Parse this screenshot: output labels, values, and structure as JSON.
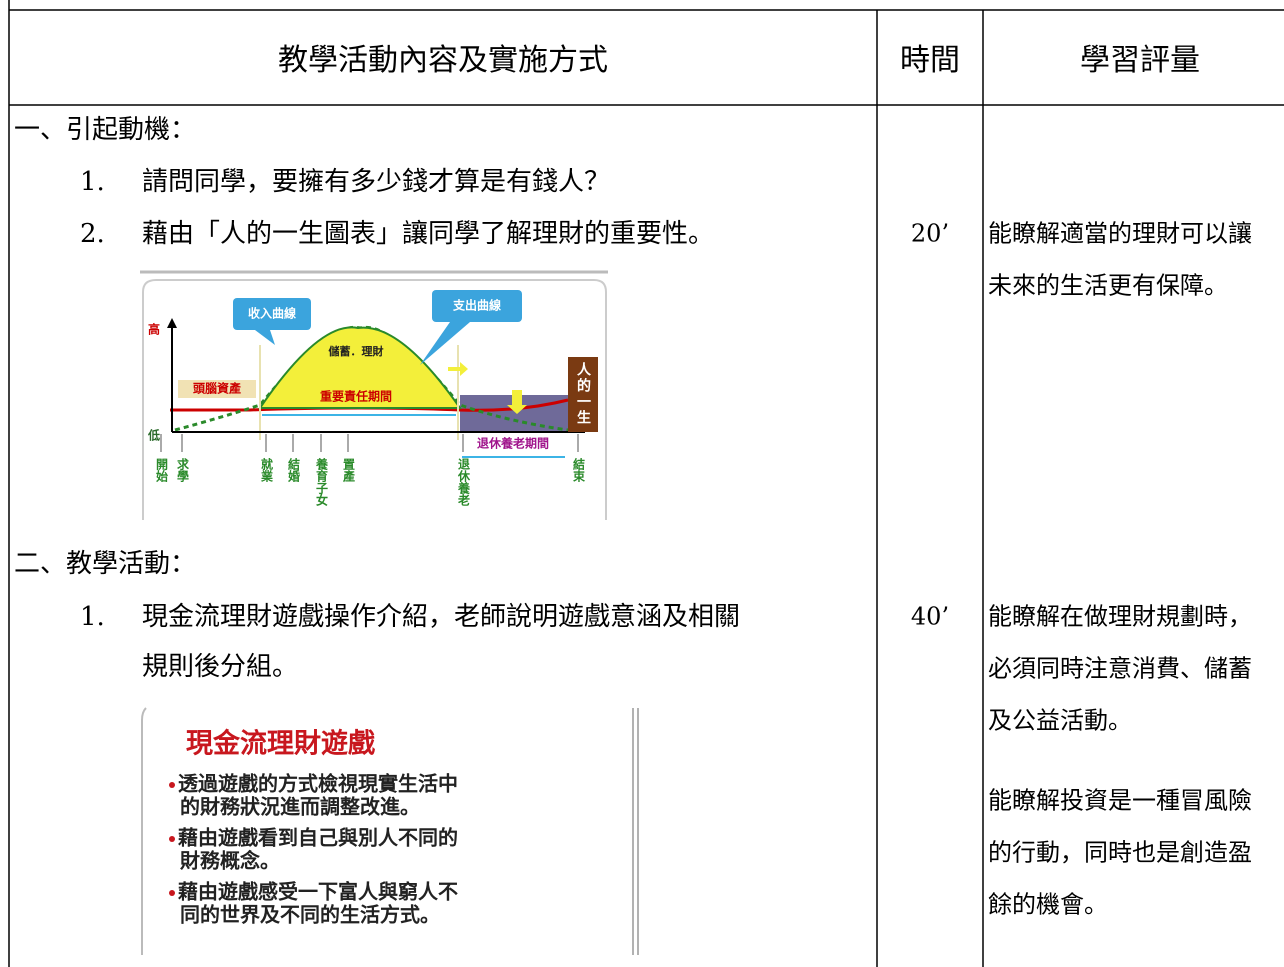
{
  "header": [
    "教學活動內容及實施方式",
    "時間",
    "學習評量"
  ],
  "section1": {
    "heading": "一、引起動機：",
    "items": [
      {
        "number": "1.",
        "text": "請問同學，要擁有多少錢才算是有錢人？"
      },
      {
        "number": "2.",
        "text": "藉由「人的一生圖表」讓同學了解理財的重要性。"
      }
    ],
    "time": "20’",
    "assessment": [
      "能瞭解適當的理財可以讓",
      "未來的生活更有保障。"
    ]
  },
  "figure1": {
    "high": "高",
    "low": "低",
    "income": "收入曲線",
    "expense": "支出曲線",
    "saving": "儲蓄．理財",
    "brain": "頭腦資產",
    "responsibility": "重要責任期間",
    "retirement_period": "退休養老期間",
    "life": "人的一生",
    "stages": [
      "開始",
      "求學",
      "就業",
      "結婚",
      "養育子女",
      "置產",
      "退休養老",
      "結束"
    ]
  },
  "section2": {
    "heading": "二、教學活動：",
    "item": {
      "number": "1.",
      "lines": [
        "現金流理財遊戲操作介紹，老師說明遊戲意涵及相關",
        "規則後分組。"
      ]
    },
    "time": "40’",
    "assessment": [
      [
        "能瞭解在做理財規劃時，",
        "必須同時注意消費、儲蓄",
        "及公益活動。"
      ],
      [
        "能瞭解投資是一種冒風險",
        "的行動，同時也是創造盈",
        "餘的機會。"
      ]
    ]
  },
  "figure2": {
    "title": "現金流理財遊戲",
    "bullets": [
      [
        "透過遊戲的方式檢視現實生活中",
        "的財務狀況進而調整改進。"
      ],
      [
        "藉由遊戲看到自己與別人不同的",
        "財務概念。"
      ],
      [
        "藉由遊戲感受一下富人與窮人不",
        "同的世界及不同的生活方式。"
      ]
    ]
  }
}
